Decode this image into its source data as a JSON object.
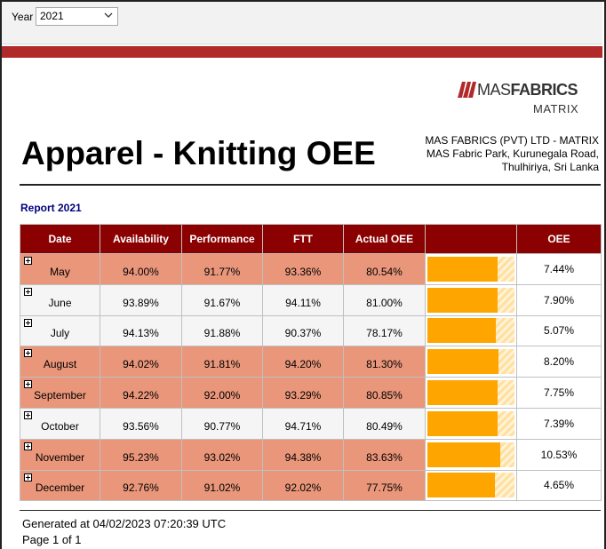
{
  "params": {
    "year_label": "Year",
    "year_value": "2021"
  },
  "brand": {
    "name_light": "MAS",
    "name_bold": "FABRICS",
    "sub": "MATRIX",
    "accent_color": "#b02a2a"
  },
  "report": {
    "title": "Apparel - Knitting OEE",
    "subtitle": "Report 2021",
    "address_lines": [
      "MAS FABRICS (PVT) LTD - MATRIX",
      "MAS Fabric Park, Kurunegala Road,",
      "Thulhiriya, Sri Lanka"
    ]
  },
  "table": {
    "headers": [
      "Date",
      "Availability",
      "Performance",
      "FTT",
      "Actual OEE",
      "",
      "OEE"
    ],
    "header_color": "#8b0000",
    "row_color_highlight": "#e9967a",
    "bar_color": "#ffa500",
    "rows": [
      {
        "date": "May",
        "availability": "94.00%",
        "performance": "91.77%",
        "ftt": "93.36%",
        "actual_oee": "80.54%",
        "bar_pct": 80.54,
        "oee": "7.44%",
        "style": "alt"
      },
      {
        "date": "June",
        "availability": "93.89%",
        "performance": "91.67%",
        "ftt": "94.11%",
        "actual_oee": "81.00%",
        "bar_pct": 81.0,
        "oee": "7.90%",
        "style": "plain"
      },
      {
        "date": "July",
        "availability": "94.13%",
        "performance": "91.88%",
        "ftt": "90.37%",
        "actual_oee": "78.17%",
        "bar_pct": 78.17,
        "oee": "5.07%",
        "style": "plain"
      },
      {
        "date": "August",
        "availability": "94.02%",
        "performance": "91.81%",
        "ftt": "94.20%",
        "actual_oee": "81.30%",
        "bar_pct": 81.3,
        "oee": "8.20%",
        "style": "alt"
      },
      {
        "date": "September",
        "availability": "94.22%",
        "performance": "92.00%",
        "ftt": "93.29%",
        "actual_oee": "80.85%",
        "bar_pct": 80.85,
        "oee": "7.75%",
        "style": "alt"
      },
      {
        "date": "October",
        "availability": "93.56%",
        "performance": "90.77%",
        "ftt": "94.71%",
        "actual_oee": "80.49%",
        "bar_pct": 80.49,
        "oee": "7.39%",
        "style": "plain"
      },
      {
        "date": "November",
        "availability": "95.23%",
        "performance": "93.02%",
        "ftt": "94.38%",
        "actual_oee": "83.63%",
        "bar_pct": 83.63,
        "oee": "10.53%",
        "style": "alt"
      },
      {
        "date": "December",
        "availability": "92.76%",
        "performance": "91.02%",
        "ftt": "92.02%",
        "actual_oee": "77.75%",
        "bar_pct": 77.75,
        "oee": "4.65%",
        "style": "alt"
      }
    ]
  },
  "footer": {
    "generated": "Generated at 04/02/2023 07:20:39 UTC",
    "page": "Page 1 of 1"
  }
}
